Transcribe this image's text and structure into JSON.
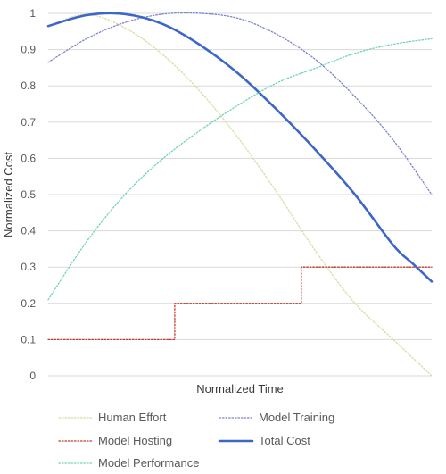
{
  "chart_data": {
    "type": "line",
    "xlabel": "Normalized Time",
    "ylabel": "Normalized Cost",
    "ylim": [
      0,
      1
    ],
    "xlim": [
      0,
      1
    ],
    "yticks": [
      "0",
      "0.1",
      "0.2",
      "0.3",
      "0.4",
      "0.5",
      "0.6",
      "0.7",
      "0.8",
      "0.9",
      "1"
    ],
    "grid": true,
    "legend_position": "bottom",
    "series": [
      {
        "name": "Human Effort",
        "color": "#d8dca0",
        "style": "dotted",
        "x": [
          0,
          0.1,
          0.2,
          0.3,
          0.4,
          0.5,
          0.6,
          0.7,
          0.8,
          0.9,
          1.0
        ],
        "y": [
          0.965,
          0.997,
          0.96,
          0.885,
          0.78,
          0.65,
          0.5,
          0.34,
          0.2,
          0.1,
          0.0
        ]
      },
      {
        "name": "Model Training",
        "color": "#7f83cc",
        "style": "dotted",
        "x": [
          0,
          0.1,
          0.2,
          0.3,
          0.4,
          0.5,
          0.6,
          0.7,
          0.8,
          0.9,
          1.0
        ],
        "y": [
          0.865,
          0.93,
          0.975,
          0.998,
          1.0,
          0.985,
          0.94,
          0.87,
          0.77,
          0.65,
          0.5
        ]
      },
      {
        "name": "Model Hosting",
        "color": "#c0392b",
        "style": "dotted",
        "x": [
          0,
          0.33,
          0.33,
          0.66,
          0.66,
          1.0
        ],
        "y": [
          0.1,
          0.1,
          0.2,
          0.2,
          0.3,
          0.3
        ]
      },
      {
        "name": "Total Cost",
        "color": "#3d67c7",
        "style": "solid",
        "x": [
          0,
          0.1,
          0.2,
          0.3,
          0.4,
          0.5,
          0.6,
          0.7,
          0.8,
          0.9,
          0.95,
          1.0
        ],
        "y": [
          0.965,
          0.995,
          0.998,
          0.97,
          0.91,
          0.83,
          0.73,
          0.62,
          0.5,
          0.36,
          0.31,
          0.26
        ]
      },
      {
        "name": "Model Performance",
        "color": "#6fd3b8",
        "style": "dotted",
        "x": [
          0,
          0.1,
          0.2,
          0.3,
          0.4,
          0.5,
          0.6,
          0.7,
          0.8,
          0.9,
          1.0
        ],
        "y": [
          0.21,
          0.37,
          0.5,
          0.6,
          0.68,
          0.75,
          0.81,
          0.85,
          0.89,
          0.915,
          0.93
        ]
      }
    ]
  }
}
